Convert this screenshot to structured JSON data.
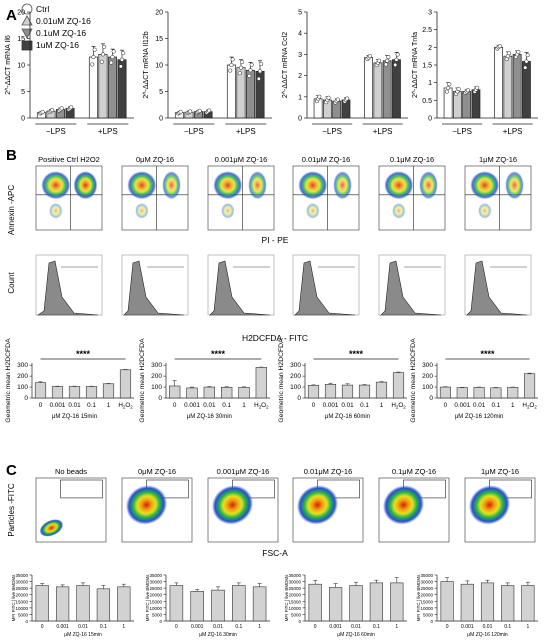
{
  "panel_labels": {
    "a": "A",
    "b": "B",
    "c": "C"
  },
  "legend": [
    {
      "label": "Ctrl",
      "shape": "circle",
      "color": "#ffffff"
    },
    {
      "label": "0.01uM ZQ-16",
      "shape": "triangle-up",
      "color": "#d0d0d0"
    },
    {
      "label": "0.1uM ZQ-16",
      "shape": "triangle-down",
      "color": "#8f8f8f"
    },
    {
      "label": "1uM ZQ-16",
      "shape": "square",
      "color": "#404040"
    }
  ],
  "flow_b": {
    "titles": [
      "Positive Ctrl H2O2",
      "0μM ZQ-16",
      "0.001μM ZQ-16",
      "0.01μM ZQ-16",
      "0.1μM ZQ-16",
      "1μM ZQ-16"
    ],
    "ylabel": "Annexin -APC",
    "xlabel": "PI - PE"
  },
  "hist_b": {
    "ylabel": "Count",
    "xlabel": "H2DCFDA - FITC"
  },
  "flow_c": {
    "titles": [
      "No beads",
      "0μM ZQ-16",
      "0.001μM ZQ-16",
      "0.01μM ZQ-16",
      "0.1μM ZQ-16",
      "1μM ZQ-16"
    ],
    "ylabel": "Particles -FITC",
    "xlabel": "FSC-A"
  },
  "chart_data": [
    {
      "type": "bar",
      "panel": "A",
      "ylabel": "2^-ΔΔCT mRNA Il6",
      "groups": [
        "−LPS",
        "+LPS"
      ],
      "yticks": [
        0,
        5,
        10,
        15,
        20
      ],
      "ylim": [
        0,
        20
      ],
      "series": [
        {
          "name": "Ctrl",
          "values": [
            1.0,
            11.5
          ],
          "err": [
            0.2,
            2.0
          ]
        },
        {
          "name": "0.01uM ZQ-16",
          "values": [
            1.3,
            12.0
          ],
          "err": [
            0.3,
            2.0
          ]
        },
        {
          "name": "0.1uM ZQ-16",
          "values": [
            1.6,
            11.5
          ],
          "err": [
            0.3,
            1.5
          ]
        },
        {
          "name": "1uM ZQ-16",
          "values": [
            1.8,
            11.0
          ],
          "err": [
            0.3,
            1.8
          ]
        }
      ]
    },
    {
      "type": "bar",
      "panel": "A",
      "ylabel": "2^-ΔΔCT mRNA Il12b",
      "groups": [
        "−LPS",
        "+LPS"
      ],
      "yticks": [
        0,
        5,
        10,
        15,
        20
      ],
      "ylim": [
        0,
        20
      ],
      "series": [
        {
          "name": "Ctrl",
          "values": [
            1.0,
            10.0
          ],
          "err": [
            0.2,
            1.5
          ]
        },
        {
          "name": "0.01uM ZQ-16",
          "values": [
            1.1,
            9.5
          ],
          "err": [
            0.2,
            1.5
          ]
        },
        {
          "name": "0.1uM ZQ-16",
          "values": [
            1.2,
            9.0
          ],
          "err": [
            0.2,
            1.5
          ]
        },
        {
          "name": "1uM ZQ-16",
          "values": [
            1.2,
            8.8
          ],
          "err": [
            0.3,
            2.0
          ]
        }
      ]
    },
    {
      "type": "bar",
      "panel": "A",
      "ylabel": "2^-ΔΔCT mRNA Ccl2",
      "groups": [
        "−LPS",
        "+LPS"
      ],
      "yticks": [
        0,
        1,
        2,
        3,
        4,
        5
      ],
      "ylim": [
        0,
        5
      ],
      "series": [
        {
          "name": "Ctrl",
          "values": [
            0.9,
            2.85
          ],
          "err": [
            0.15,
            0.1
          ]
        },
        {
          "name": "0.01uM ZQ-16",
          "values": [
            0.85,
            2.6
          ],
          "err": [
            0.15,
            0.15
          ]
        },
        {
          "name": "0.1uM ZQ-16",
          "values": [
            0.8,
            2.7
          ],
          "err": [
            0.1,
            0.25
          ]
        },
        {
          "name": "1uM ZQ-16",
          "values": [
            0.85,
            2.75
          ],
          "err": [
            0.1,
            0.35
          ]
        }
      ]
    },
    {
      "type": "bar",
      "panel": "A",
      "ylabel": "2^-ΔΔCT mRNA Tnfa",
      "groups": [
        "−LPS",
        "+LPS"
      ],
      "yticks": [
        0.0,
        0.5,
        1.0,
        1.5,
        2.0,
        2.5,
        3.0
      ],
      "ylim": [
        0,
        3
      ],
      "series": [
        {
          "name": "Ctrl",
          "values": [
            0.85,
            2.0
          ],
          "err": [
            0.15,
            0.05
          ]
        },
        {
          "name": "0.01uM ZQ-16",
          "values": [
            0.75,
            1.75
          ],
          "err": [
            0.1,
            0.12
          ]
        },
        {
          "name": "0.1uM ZQ-16",
          "values": [
            0.75,
            1.8
          ],
          "err": [
            0.05,
            0.1
          ]
        },
        {
          "name": "1uM ZQ-16",
          "values": [
            0.8,
            1.6
          ],
          "err": [
            0.08,
            0.25
          ]
        }
      ]
    },
    {
      "type": "bar",
      "panel": "B",
      "ylabel": "Geometric mean H2DCFDA",
      "xlabel": "μM ZQ-16 15min",
      "categories": [
        "0",
        "0.001",
        "0.01",
        "0.1",
        "1",
        "H2O2"
      ],
      "values": [
        140,
        105,
        105,
        105,
        130,
        258
      ],
      "err": [
        8,
        3,
        3,
        3,
        3,
        3
      ],
      "yticks": [
        0,
        100,
        200,
        300
      ],
      "ylim": [
        0,
        320
      ],
      "significance": "****"
    },
    {
      "type": "bar",
      "panel": "B",
      "ylabel": "Geometric mean H2DCFDA",
      "xlabel": "μM ZQ-16 30min",
      "categories": [
        "0",
        "0.001",
        "0.01",
        "0.1",
        "1",
        "H2O2"
      ],
      "values": [
        110,
        92,
        100,
        98,
        97,
        280
      ],
      "err": [
        50,
        8,
        5,
        5,
        5,
        3
      ],
      "yticks": [
        0,
        100,
        200,
        300
      ],
      "ylim": [
        0,
        320
      ],
      "significance": "****"
    },
    {
      "type": "bar",
      "panel": "B",
      "ylabel": "Geometric mean H2DCFDA",
      "xlabel": "μM ZQ-16 60min",
      "categories": [
        "0",
        "0.001",
        "0.01",
        "0.1",
        "1",
        "H2O2"
      ],
      "values": [
        115,
        125,
        118,
        118,
        145,
        232
      ],
      "err": [
        5,
        10,
        12,
        5,
        5,
        5
      ],
      "yticks": [
        0,
        100,
        200,
        300
      ],
      "ylim": [
        0,
        320
      ],
      "significance": "****"
    },
    {
      "type": "bar",
      "panel": "B",
      "ylabel": "Geometric mean H2DCFDA",
      "xlabel": "μM ZQ-16 120min",
      "categories": [
        "0",
        "0.001",
        "0.01",
        "0.1",
        "1",
        "H2O2"
      ],
      "values": [
        100,
        95,
        97,
        93,
        97,
        222
      ],
      "err": [
        3,
        3,
        3,
        3,
        3,
        5
      ],
      "yticks": [
        0,
        100,
        200,
        300
      ],
      "ylim": [
        0,
        320
      ],
      "significance": "****"
    },
    {
      "type": "bar",
      "panel": "C",
      "ylabel": "MFI FITC | live BMDMs",
      "xlabel": "μM ZQ-16 15min",
      "categories": [
        "0",
        "0.001",
        "0.01",
        "0.1",
        "1"
      ],
      "values": [
        27000,
        26000,
        27000,
        24500,
        26000
      ],
      "err": [
        1500,
        1500,
        2000,
        2500,
        2000
      ],
      "yticks": [
        0,
        5000,
        10000,
        15000,
        20000,
        25000,
        30000,
        35000
      ],
      "ylim": [
        0,
        35000
      ]
    },
    {
      "type": "bar",
      "panel": "C",
      "ylabel": "MFI FITC | live BMDMs",
      "xlabel": "μM ZQ-16 30min",
      "categories": [
        "0",
        "0.001",
        "0.01",
        "0.1",
        "1"
      ],
      "values": [
        27000,
        22500,
        23500,
        27000,
        26000
      ],
      "err": [
        2000,
        1500,
        2500,
        2000,
        2500
      ],
      "yticks": [
        0,
        5000,
        10000,
        15000,
        20000,
        25000,
        30000,
        35000
      ],
      "ylim": [
        0,
        35000
      ]
    },
    {
      "type": "bar",
      "panel": "C",
      "ylabel": "MFI FITC | live BMDMs",
      "xlabel": "μM ZQ-16 60min",
      "categories": [
        "0",
        "0.001",
        "0.01",
        "0.1",
        "1"
      ],
      "values": [
        28000,
        25500,
        27000,
        29000,
        29000
      ],
      "err": [
        3000,
        3000,
        2500,
        2000,
        4000
      ],
      "yticks": [
        0,
        5000,
        10000,
        15000,
        20000,
        25000,
        30000,
        35000
      ],
      "ylim": [
        0,
        35000
      ]
    },
    {
      "type": "bar",
      "panel": "C",
      "ylabel": "MFI FITC | live BMDMs",
      "xlabel": "μM ZQ-16 120min",
      "categories": [
        "0",
        "0.001",
        "0.01",
        "0.1",
        "1"
      ],
      "values": [
        30000,
        28000,
        29000,
        27000,
        27000
      ],
      "err": [
        3000,
        2500,
        2000,
        2000,
        2500
      ],
      "yticks": [
        0,
        5000,
        10000,
        15000,
        20000,
        25000,
        30000,
        35000
      ],
      "ylim": [
        0,
        35000
      ]
    }
  ]
}
